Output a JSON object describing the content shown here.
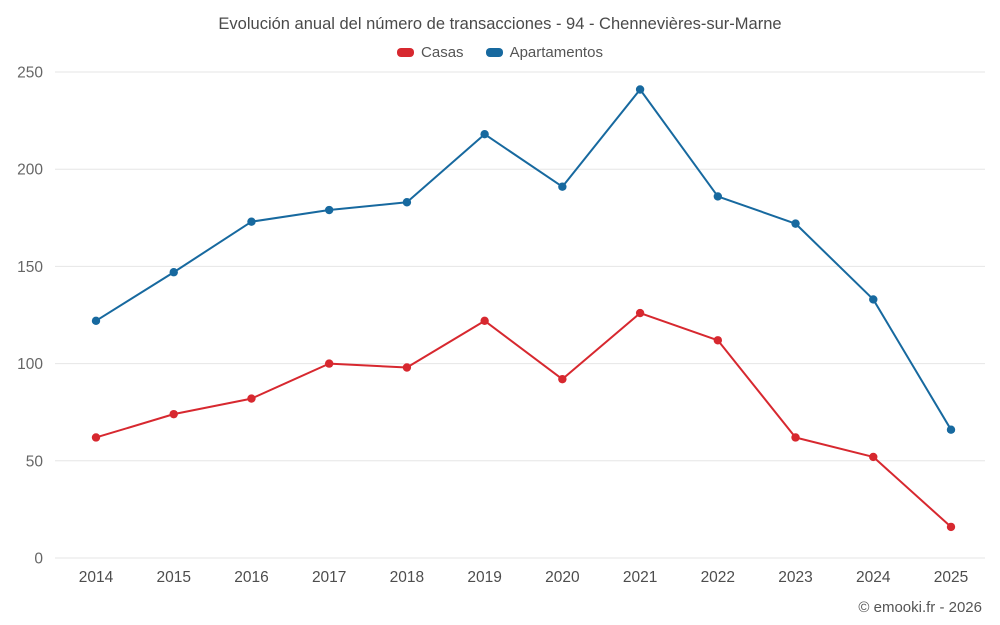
{
  "title": "Evolución anual del número de transacciones - 94 - Chennevières-sur-Marne",
  "footer": "© emooki.fr - 2026",
  "legend": [
    {
      "label": "Casas",
      "color": "#d7282f"
    },
    {
      "label": "Apartamentos",
      "color": "#17699f"
    }
  ],
  "chart_data": {
    "type": "line",
    "title": "Evolución anual del número de transacciones - 94 - Chennevières-sur-Marne",
    "categories": [
      "2014",
      "2015",
      "2016",
      "2017",
      "2018",
      "2019",
      "2020",
      "2021",
      "2022",
      "2023",
      "2024",
      "2025"
    ],
    "series": [
      {
        "name": "Casas",
        "color": "#d7282f",
        "values": [
          62,
          74,
          82,
          100,
          98,
          122,
          92,
          126,
          112,
          62,
          52,
          16
        ]
      },
      {
        "name": "Apartamentos",
        "color": "#17699f",
        "values": [
          122,
          147,
          173,
          179,
          183,
          218,
          191,
          241,
          186,
          172,
          133,
          66
        ]
      }
    ],
    "xlabel": "",
    "ylabel": "",
    "ylim": [
      0,
      250
    ],
    "yticks": [
      0,
      50,
      100,
      150,
      200,
      250
    ],
    "grid": true,
    "legend_position": "top",
    "marker": "circle"
  }
}
